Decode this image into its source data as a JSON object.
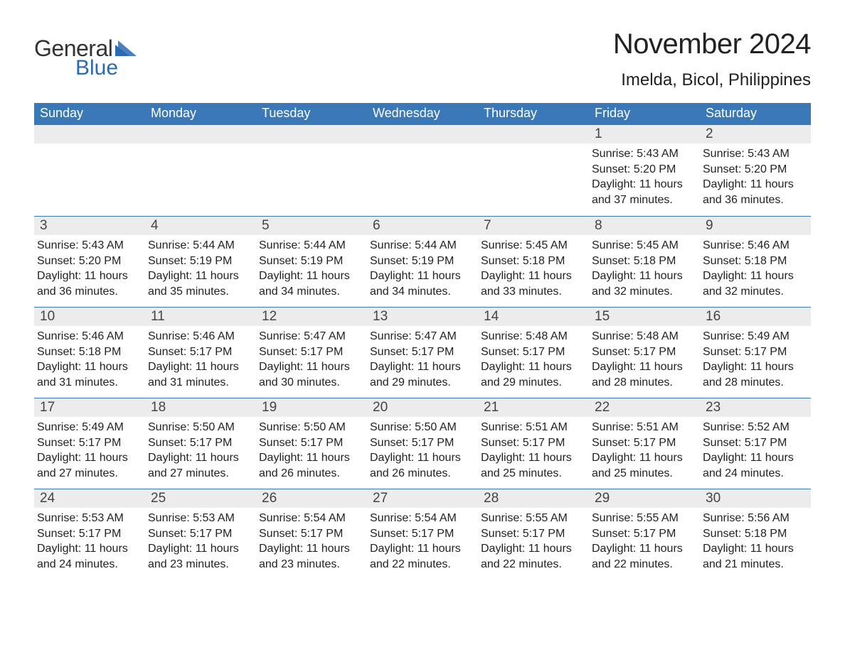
{
  "logo": {
    "word1": "General",
    "word2": "Blue",
    "word1_color": "#333333",
    "word2_color": "#2a6bb0",
    "triangle_color": "#2a6bb0"
  },
  "title": "November 2024",
  "location": "Imelda, Bicol, Philippines",
  "colors": {
    "header_bg": "#3a78b8",
    "header_text": "#ffffff",
    "row_border": "#3a78b8",
    "daynum_bg": "#ececec",
    "text": "#222222",
    "page_bg": "#ffffff"
  },
  "typography": {
    "title_fontsize": 40,
    "location_fontsize": 24,
    "weekday_fontsize": 18,
    "daynum_fontsize": 19,
    "body_fontsize": 16
  },
  "weekdays": [
    "Sunday",
    "Monday",
    "Tuesday",
    "Wednesday",
    "Thursday",
    "Friday",
    "Saturday"
  ],
  "weeks": [
    [
      null,
      null,
      null,
      null,
      null,
      {
        "n": "1",
        "sunrise": "Sunrise: 5:43 AM",
        "sunset": "Sunset: 5:20 PM",
        "d1": "Daylight: 11 hours",
        "d2": "and 37 minutes."
      },
      {
        "n": "2",
        "sunrise": "Sunrise: 5:43 AM",
        "sunset": "Sunset: 5:20 PM",
        "d1": "Daylight: 11 hours",
        "d2": "and 36 minutes."
      }
    ],
    [
      {
        "n": "3",
        "sunrise": "Sunrise: 5:43 AM",
        "sunset": "Sunset: 5:20 PM",
        "d1": "Daylight: 11 hours",
        "d2": "and 36 minutes."
      },
      {
        "n": "4",
        "sunrise": "Sunrise: 5:44 AM",
        "sunset": "Sunset: 5:19 PM",
        "d1": "Daylight: 11 hours",
        "d2": "and 35 minutes."
      },
      {
        "n": "5",
        "sunrise": "Sunrise: 5:44 AM",
        "sunset": "Sunset: 5:19 PM",
        "d1": "Daylight: 11 hours",
        "d2": "and 34 minutes."
      },
      {
        "n": "6",
        "sunrise": "Sunrise: 5:44 AM",
        "sunset": "Sunset: 5:19 PM",
        "d1": "Daylight: 11 hours",
        "d2": "and 34 minutes."
      },
      {
        "n": "7",
        "sunrise": "Sunrise: 5:45 AM",
        "sunset": "Sunset: 5:18 PM",
        "d1": "Daylight: 11 hours",
        "d2": "and 33 minutes."
      },
      {
        "n": "8",
        "sunrise": "Sunrise: 5:45 AM",
        "sunset": "Sunset: 5:18 PM",
        "d1": "Daylight: 11 hours",
        "d2": "and 32 minutes."
      },
      {
        "n": "9",
        "sunrise": "Sunrise: 5:46 AM",
        "sunset": "Sunset: 5:18 PM",
        "d1": "Daylight: 11 hours",
        "d2": "and 32 minutes."
      }
    ],
    [
      {
        "n": "10",
        "sunrise": "Sunrise: 5:46 AM",
        "sunset": "Sunset: 5:18 PM",
        "d1": "Daylight: 11 hours",
        "d2": "and 31 minutes."
      },
      {
        "n": "11",
        "sunrise": "Sunrise: 5:46 AM",
        "sunset": "Sunset: 5:17 PM",
        "d1": "Daylight: 11 hours",
        "d2": "and 31 minutes."
      },
      {
        "n": "12",
        "sunrise": "Sunrise: 5:47 AM",
        "sunset": "Sunset: 5:17 PM",
        "d1": "Daylight: 11 hours",
        "d2": "and 30 minutes."
      },
      {
        "n": "13",
        "sunrise": "Sunrise: 5:47 AM",
        "sunset": "Sunset: 5:17 PM",
        "d1": "Daylight: 11 hours",
        "d2": "and 29 minutes."
      },
      {
        "n": "14",
        "sunrise": "Sunrise: 5:48 AM",
        "sunset": "Sunset: 5:17 PM",
        "d1": "Daylight: 11 hours",
        "d2": "and 29 minutes."
      },
      {
        "n": "15",
        "sunrise": "Sunrise: 5:48 AM",
        "sunset": "Sunset: 5:17 PM",
        "d1": "Daylight: 11 hours",
        "d2": "and 28 minutes."
      },
      {
        "n": "16",
        "sunrise": "Sunrise: 5:49 AM",
        "sunset": "Sunset: 5:17 PM",
        "d1": "Daylight: 11 hours",
        "d2": "and 28 minutes."
      }
    ],
    [
      {
        "n": "17",
        "sunrise": "Sunrise: 5:49 AM",
        "sunset": "Sunset: 5:17 PM",
        "d1": "Daylight: 11 hours",
        "d2": "and 27 minutes."
      },
      {
        "n": "18",
        "sunrise": "Sunrise: 5:50 AM",
        "sunset": "Sunset: 5:17 PM",
        "d1": "Daylight: 11 hours",
        "d2": "and 27 minutes."
      },
      {
        "n": "19",
        "sunrise": "Sunrise: 5:50 AM",
        "sunset": "Sunset: 5:17 PM",
        "d1": "Daylight: 11 hours",
        "d2": "and 26 minutes."
      },
      {
        "n": "20",
        "sunrise": "Sunrise: 5:50 AM",
        "sunset": "Sunset: 5:17 PM",
        "d1": "Daylight: 11 hours",
        "d2": "and 26 minutes."
      },
      {
        "n": "21",
        "sunrise": "Sunrise: 5:51 AM",
        "sunset": "Sunset: 5:17 PM",
        "d1": "Daylight: 11 hours",
        "d2": "and 25 minutes."
      },
      {
        "n": "22",
        "sunrise": "Sunrise: 5:51 AM",
        "sunset": "Sunset: 5:17 PM",
        "d1": "Daylight: 11 hours",
        "d2": "and 25 minutes."
      },
      {
        "n": "23",
        "sunrise": "Sunrise: 5:52 AM",
        "sunset": "Sunset: 5:17 PM",
        "d1": "Daylight: 11 hours",
        "d2": "and 24 minutes."
      }
    ],
    [
      {
        "n": "24",
        "sunrise": "Sunrise: 5:53 AM",
        "sunset": "Sunset: 5:17 PM",
        "d1": "Daylight: 11 hours",
        "d2": "and 24 minutes."
      },
      {
        "n": "25",
        "sunrise": "Sunrise: 5:53 AM",
        "sunset": "Sunset: 5:17 PM",
        "d1": "Daylight: 11 hours",
        "d2": "and 23 minutes."
      },
      {
        "n": "26",
        "sunrise": "Sunrise: 5:54 AM",
        "sunset": "Sunset: 5:17 PM",
        "d1": "Daylight: 11 hours",
        "d2": "and 23 minutes."
      },
      {
        "n": "27",
        "sunrise": "Sunrise: 5:54 AM",
        "sunset": "Sunset: 5:17 PM",
        "d1": "Daylight: 11 hours",
        "d2": "and 22 minutes."
      },
      {
        "n": "28",
        "sunrise": "Sunrise: 5:55 AM",
        "sunset": "Sunset: 5:17 PM",
        "d1": "Daylight: 11 hours",
        "d2": "and 22 minutes."
      },
      {
        "n": "29",
        "sunrise": "Sunrise: 5:55 AM",
        "sunset": "Sunset: 5:17 PM",
        "d1": "Daylight: 11 hours",
        "d2": "and 22 minutes."
      },
      {
        "n": "30",
        "sunrise": "Sunrise: 5:56 AM",
        "sunset": "Sunset: 5:18 PM",
        "d1": "Daylight: 11 hours",
        "d2": "and 21 minutes."
      }
    ]
  ]
}
